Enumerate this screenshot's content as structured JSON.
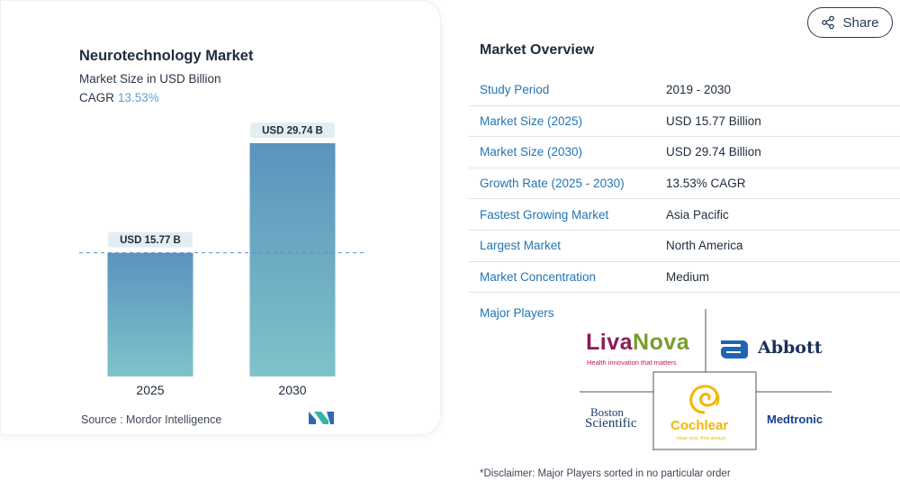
{
  "chart_data": {
    "type": "bar",
    "title": "Neurotechnology Market",
    "subtitle": "Market Size in USD Billion",
    "cagr_label": "CAGR",
    "cagr_value": "13.53%",
    "categories": [
      "2025",
      "2030"
    ],
    "values": [
      15.77,
      29.74
    ],
    "data_labels": [
      "USD 15.77 B",
      "USD 29.74 B"
    ],
    "ylim": [
      0,
      29.74
    ],
    "reference_line": 15.77,
    "bar_color_top": "#5b93bd",
    "bar_color_bottom": "#7fc3c9",
    "xlabel": "",
    "ylabel": "",
    "grid": false,
    "legend": "none"
  },
  "card": {
    "source": "Source : Mordor Intelligence"
  },
  "share": {
    "label": "Share"
  },
  "overview": {
    "title": "Market Overview",
    "rows": [
      {
        "key": "Study Period",
        "value": "2019 - 2030"
      },
      {
        "key": "Market Size (2025)",
        "value": "USD 15.77 Billion"
      },
      {
        "key": "Market Size (2030)",
        "value": "USD 29.74 Billion"
      },
      {
        "key": "Growth Rate (2025 - 2030)",
        "value": "13.53% CAGR"
      },
      {
        "key": "Fastest Growing Market",
        "value": "Asia Pacific"
      },
      {
        "key": "Largest Market",
        "value": "North America"
      },
      {
        "key": "Market Concentration",
        "value": "Medium"
      }
    ],
    "major_players_label": "Major Players"
  },
  "players": {
    "livanova_a": "Liva",
    "livanova_b": "Nova",
    "livanova_tag": "Health innovation that matters",
    "abbott": "Abbott",
    "boston_a": "Boston",
    "boston_b": "Scientific",
    "cochlear": "Cochlear",
    "cochlear_tag": "Hear now. And always",
    "medtronic": "Medtronic"
  },
  "disclaimer": "*Disclaimer: Major Players sorted in no particular order"
}
